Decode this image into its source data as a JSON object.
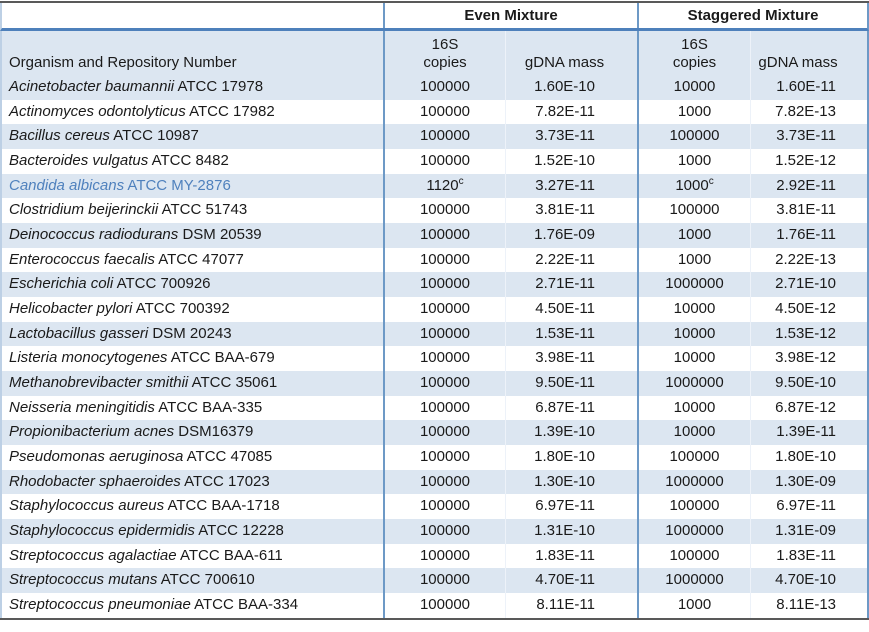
{
  "table": {
    "group_headers": {
      "even": "Even Mixture",
      "staggered": "Staggered Mixture"
    },
    "column_headers": {
      "organism": "Organism and Repository Number",
      "copies_line1": "16S",
      "copies_line2": "copies",
      "gdna": "gDNA mass"
    },
    "footnote_marker": "c",
    "colors": {
      "row_alt_fill": "#dce6f1",
      "group_separator": "#6d99c6",
      "header_underline": "#4e80bb",
      "outer_border": "#595959",
      "highlight_text": "#4f81bd"
    },
    "rows": [
      {
        "organism": "Acinetobacter baumannii",
        "repo": "ATCC 17978",
        "even_copies": "100000",
        "even_copies_sup": "",
        "even_mass": "1.60E-10",
        "stag_copies": "10000",
        "stag_copies_sup": "",
        "stag_mass": "1.60E-11",
        "highlight": false
      },
      {
        "organism": "Actinomyces odontolyticus",
        "repo": "ATCC 17982",
        "even_copies": "100000",
        "even_copies_sup": "",
        "even_mass": "7.82E-11",
        "stag_copies": "1000",
        "stag_copies_sup": "",
        "stag_mass": "7.82E-13",
        "highlight": false
      },
      {
        "organism": "Bacillus cereus",
        "repo": "ATCC 10987",
        "even_copies": "100000",
        "even_copies_sup": "",
        "even_mass": "3.73E-11",
        "stag_copies": "100000",
        "stag_copies_sup": "",
        "stag_mass": "3.73E-11",
        "highlight": false
      },
      {
        "organism": "Bacteroides vulgatus",
        "repo": "ATCC 8482",
        "even_copies": "100000",
        "even_copies_sup": "",
        "even_mass": "1.52E-10",
        "stag_copies": "1000",
        "stag_copies_sup": "",
        "stag_mass": "1.52E-12",
        "highlight": false
      },
      {
        "organism": "Candida albicans",
        "repo": "ATCC MY-2876",
        "even_copies": "1120",
        "even_copies_sup": "c",
        "even_mass": "3.27E-11",
        "stag_copies": "1000",
        "stag_copies_sup": "c",
        "stag_mass": "2.92E-11",
        "highlight": true
      },
      {
        "organism": "Clostridium beijerinckii",
        "repo": "ATCC 51743",
        "even_copies": "100000",
        "even_copies_sup": "",
        "even_mass": "3.81E-11",
        "stag_copies": "100000",
        "stag_copies_sup": "",
        "stag_mass": "3.81E-11",
        "highlight": false
      },
      {
        "organism": "Deinococcus radiodurans",
        "repo": "DSM 20539",
        "even_copies": "100000",
        "even_copies_sup": "",
        "even_mass": "1.76E-09",
        "stag_copies": "1000",
        "stag_copies_sup": "",
        "stag_mass": "1.76E-11",
        "highlight": false
      },
      {
        "organism": "Enterococcus faecalis",
        "repo": "ATCC 47077",
        "even_copies": "100000",
        "even_copies_sup": "",
        "even_mass": "2.22E-11",
        "stag_copies": "1000",
        "stag_copies_sup": "",
        "stag_mass": "2.22E-13",
        "highlight": false
      },
      {
        "organism": "Escherichia coli",
        "repo": "ATCC 700926",
        "even_copies": "100000",
        "even_copies_sup": "",
        "even_mass": "2.71E-11",
        "stag_copies": "1000000",
        "stag_copies_sup": "",
        "stag_mass": "2.71E-10",
        "highlight": false
      },
      {
        "organism": "Helicobacter pylori",
        "repo": "ATCC 700392",
        "even_copies": "100000",
        "even_copies_sup": "",
        "even_mass": "4.50E-11",
        "stag_copies": "10000",
        "stag_copies_sup": "",
        "stag_mass": "4.50E-12",
        "highlight": false
      },
      {
        "organism": "Lactobacillus gasseri",
        "repo": "DSM 20243",
        "even_copies": "100000",
        "even_copies_sup": "",
        "even_mass": "1.53E-11",
        "stag_copies": "10000",
        "stag_copies_sup": "",
        "stag_mass": "1.53E-12",
        "highlight": false
      },
      {
        "organism": "Listeria monocytogenes",
        "repo": "ATCC BAA-679",
        "even_copies": "100000",
        "even_copies_sup": "",
        "even_mass": "3.98E-11",
        "stag_copies": "10000",
        "stag_copies_sup": "",
        "stag_mass": "3.98E-12",
        "highlight": false
      },
      {
        "organism": "Methanobrevibacter smithii",
        "repo": "ATCC 35061",
        "even_copies": "100000",
        "even_copies_sup": "",
        "even_mass": "9.50E-11",
        "stag_copies": "1000000",
        "stag_copies_sup": "",
        "stag_mass": "9.50E-10",
        "highlight": false
      },
      {
        "organism": "Neisseria meningitidis",
        "repo": "ATCC BAA-335",
        "even_copies": "100000",
        "even_copies_sup": "",
        "even_mass": "6.87E-11",
        "stag_copies": "10000",
        "stag_copies_sup": "",
        "stag_mass": "6.87E-12",
        "highlight": false
      },
      {
        "organism": "Propionibacterium acnes",
        "repo": "DSM16379",
        "even_copies": "100000",
        "even_copies_sup": "",
        "even_mass": "1.39E-10",
        "stag_copies": "10000",
        "stag_copies_sup": "",
        "stag_mass": "1.39E-11",
        "highlight": false
      },
      {
        "organism": "Pseudomonas aeruginosa",
        "repo": "ATCC 47085",
        "even_copies": "100000",
        "even_copies_sup": "",
        "even_mass": "1.80E-10",
        "stag_copies": "100000",
        "stag_copies_sup": "",
        "stag_mass": "1.80E-10",
        "highlight": false
      },
      {
        "organism": "Rhodobacter sphaeroides",
        "repo": "ATCC 17023",
        "even_copies": "100000",
        "even_copies_sup": "",
        "even_mass": "1.30E-10",
        "stag_copies": "1000000",
        "stag_copies_sup": "",
        "stag_mass": "1.30E-09",
        "highlight": false
      },
      {
        "organism": "Staphylococcus aureus",
        "repo": "ATCC BAA-1718",
        "even_copies": "100000",
        "even_copies_sup": "",
        "even_mass": "6.97E-11",
        "stag_copies": "100000",
        "stag_copies_sup": "",
        "stag_mass": "6.97E-11",
        "highlight": false
      },
      {
        "organism": "Staphylococcus epidermidis",
        "repo": "ATCC 12228",
        "even_copies": "100000",
        "even_copies_sup": "",
        "even_mass": "1.31E-10",
        "stag_copies": "1000000",
        "stag_copies_sup": "",
        "stag_mass": "1.31E-09",
        "highlight": false
      },
      {
        "organism": "Streptococcus agalactiae",
        "repo": "ATCC BAA-611",
        "even_copies": "100000",
        "even_copies_sup": "",
        "even_mass": "1.83E-11",
        "stag_copies": "100000",
        "stag_copies_sup": "",
        "stag_mass": "1.83E-11",
        "highlight": false
      },
      {
        "organism": "Streptococcus mutans",
        "repo": "ATCC 700610",
        "even_copies": "100000",
        "even_copies_sup": "",
        "even_mass": "4.70E-11",
        "stag_copies": "1000000",
        "stag_copies_sup": "",
        "stag_mass": "4.70E-10",
        "highlight": false
      },
      {
        "organism": "Streptococcus pneumoniae",
        "repo": "ATCC BAA-334",
        "even_copies": "100000",
        "even_copies_sup": "",
        "even_mass": "8.11E-11",
        "stag_copies": "1000",
        "stag_copies_sup": "",
        "stag_mass": "8.11E-13",
        "highlight": false
      }
    ]
  }
}
